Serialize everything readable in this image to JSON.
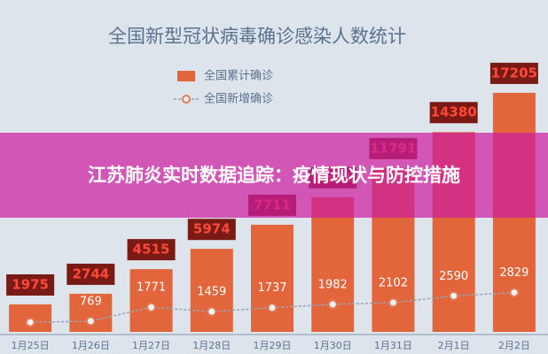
{
  "chart_data": {
    "type": "bar_line",
    "title": "全国新型冠状病毒确诊感染人数统计",
    "categories": [
      "1月25日",
      "1月26日",
      "1月27日",
      "1月28日",
      "1月29日",
      "1月30日",
      "1月31日",
      "2月1日",
      "2月2日"
    ],
    "series": [
      {
        "name": "全国累计确诊",
        "type": "bar",
        "color": "#e2653c",
        "values": [
          1975,
          2744,
          4515,
          5974,
          7711,
          9692,
          11791,
          14380,
          17205
        ]
      },
      {
        "name": "全国新增确诊",
        "type": "line",
        "color": "#e07a55",
        "values": [
          688,
          769,
          1771,
          1459,
          1737,
          1982,
          2102,
          2590,
          2829
        ],
        "value_labels": [
          null,
          "769",
          "1771",
          "1459",
          "1737",
          "1982",
          "2102",
          "2590",
          "2829"
        ]
      }
    ],
    "ylim": [
      0,
      20000
    ]
  },
  "overlay": {
    "headline": "江苏肺炎实时数据追踪：疫情现状与防控措施"
  }
}
